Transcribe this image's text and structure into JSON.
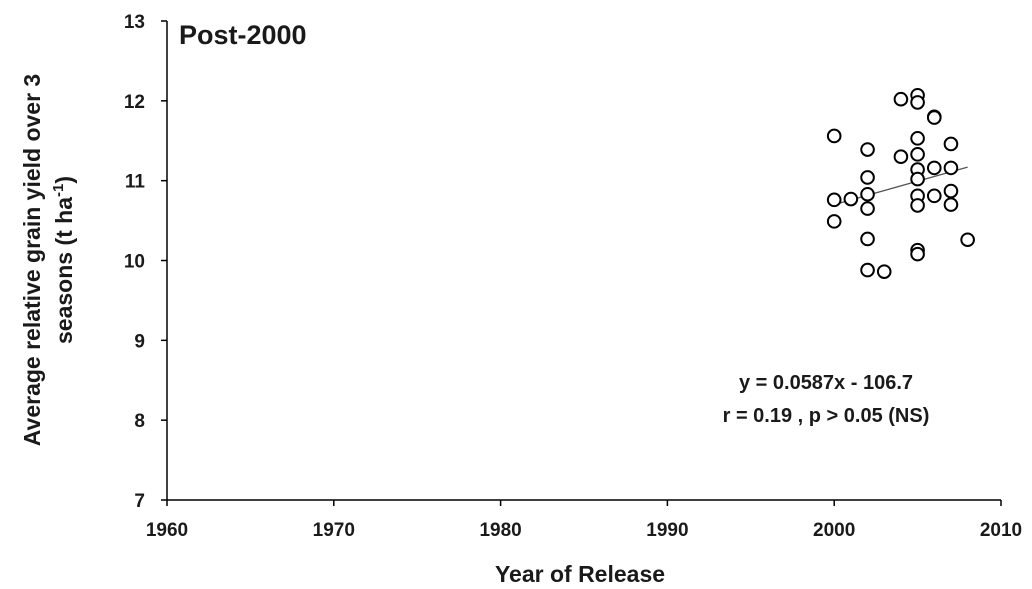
{
  "chart_data": {
    "type": "scatter",
    "title": "Post-2000",
    "xlabel": "Year of Release",
    "ylabel_line1": "Average relative grain yield over 3",
    "ylabel_line2": "seasons (t ha",
    "ylabel_sup": "-1",
    "ylabel_close": ")",
    "xlim": [
      1960,
      2010
    ],
    "ylim": [
      7,
      13
    ],
    "x_ticks": [
      1960,
      1970,
      1980,
      1990,
      2000,
      2010
    ],
    "y_ticks": [
      7,
      8,
      9,
      10,
      11,
      12,
      13
    ],
    "grid": false,
    "legend": "none",
    "marker": "open-circle",
    "colors": {
      "marker": "#000000",
      "trendline": "#555555",
      "axis": "#000000"
    },
    "points": [
      {
        "x": 2000,
        "y": 11.56
      },
      {
        "x": 2000,
        "y": 10.76
      },
      {
        "x": 2000,
        "y": 10.49
      },
      {
        "x": 2001,
        "y": 10.77
      },
      {
        "x": 2002,
        "y": 11.39
      },
      {
        "x": 2002,
        "y": 11.04
      },
      {
        "x": 2002,
        "y": 10.83
      },
      {
        "x": 2002,
        "y": 10.65
      },
      {
        "x": 2002,
        "y": 10.27
      },
      {
        "x": 2002,
        "y": 9.88
      },
      {
        "x": 2003,
        "y": 9.86
      },
      {
        "x": 2004,
        "y": 12.02
      },
      {
        "x": 2004,
        "y": 11.3
      },
      {
        "x": 2005,
        "y": 12.07
      },
      {
        "x": 2005,
        "y": 11.98
      },
      {
        "x": 2005,
        "y": 11.53
      },
      {
        "x": 2005,
        "y": 11.33
      },
      {
        "x": 2005,
        "y": 11.14
      },
      {
        "x": 2005,
        "y": 11.02
      },
      {
        "x": 2005,
        "y": 10.81
      },
      {
        "x": 2005,
        "y": 10.69
      },
      {
        "x": 2005,
        "y": 10.13
      },
      {
        "x": 2005,
        "y": 10.08
      },
      {
        "x": 2006,
        "y": 11.8
      },
      {
        "x": 2006,
        "y": 11.79
      },
      {
        "x": 2006,
        "y": 11.16
      },
      {
        "x": 2006,
        "y": 10.81
      },
      {
        "x": 2007,
        "y": 11.46
      },
      {
        "x": 2007,
        "y": 11.16
      },
      {
        "x": 2007,
        "y": 10.87
      },
      {
        "x": 2007,
        "y": 10.7
      },
      {
        "x": 2008,
        "y": 10.26
      }
    ],
    "trendline": {
      "slope": 0.0587,
      "intercept": -106.7,
      "x_range": [
        2000,
        2008
      ]
    },
    "annotations": {
      "equation": "y = 0.0587x - 106.7",
      "stats": "r = 0.19 , p > 0.05 (NS)"
    }
  }
}
